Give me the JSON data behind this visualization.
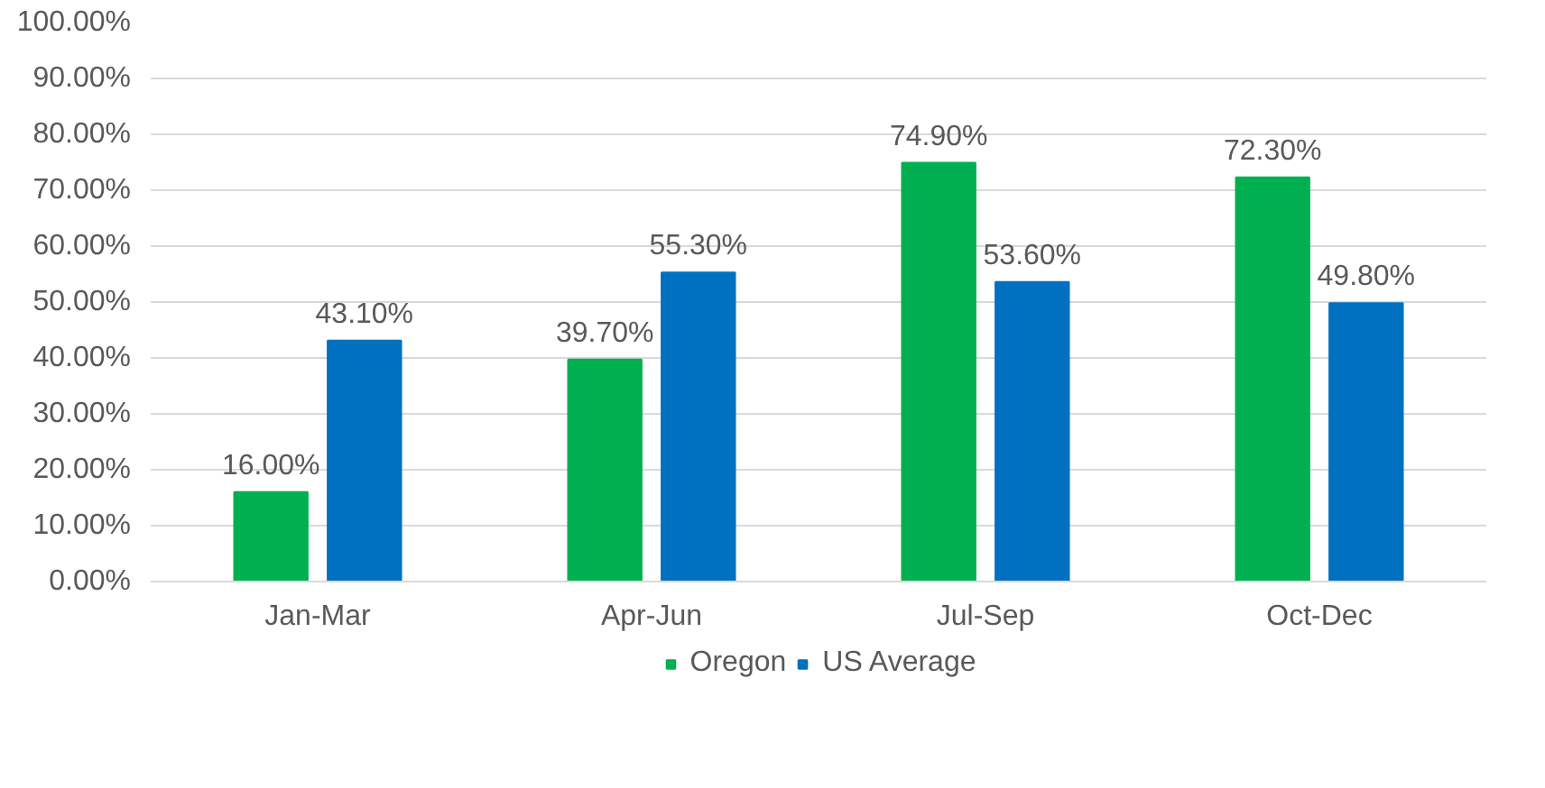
{
  "chart_data": {
    "type": "bar",
    "categories": [
      "Jan-Mar",
      "Apr-Jun",
      "Jul-Sep",
      "Oct-Dec"
    ],
    "series": [
      {
        "name": "Oregon",
        "color": "#00b050",
        "values": [
          16.0,
          39.7,
          74.9,
          72.3
        ],
        "value_labels": [
          "16.00%",
          "39.70%",
          "74.90%",
          "72.30%"
        ]
      },
      {
        "name": "US Average",
        "color": "#0070c0",
        "values": [
          43.1,
          55.3,
          53.6,
          49.8
        ],
        "value_labels": [
          "43.10%",
          "55.30%",
          "53.60%",
          "49.80%"
        ]
      }
    ],
    "ylim": [
      0,
      100
    ],
    "yticks": [
      {
        "value": 0,
        "label": "0.00%"
      },
      {
        "value": 10,
        "label": "10.00%"
      },
      {
        "value": 20,
        "label": "20.00%"
      },
      {
        "value": 30,
        "label": "30.00%"
      },
      {
        "value": 40,
        "label": "40.00%"
      },
      {
        "value": 50,
        "label": "50.00%"
      },
      {
        "value": 60,
        "label": "60.00%"
      },
      {
        "value": 70,
        "label": "70.00%"
      },
      {
        "value": 80,
        "label": "80.00%"
      },
      {
        "value": 90,
        "label": "90.00%"
      },
      {
        "value": 100,
        "label": "100.00%"
      }
    ],
    "grid": "y",
    "legend": "bottom"
  }
}
